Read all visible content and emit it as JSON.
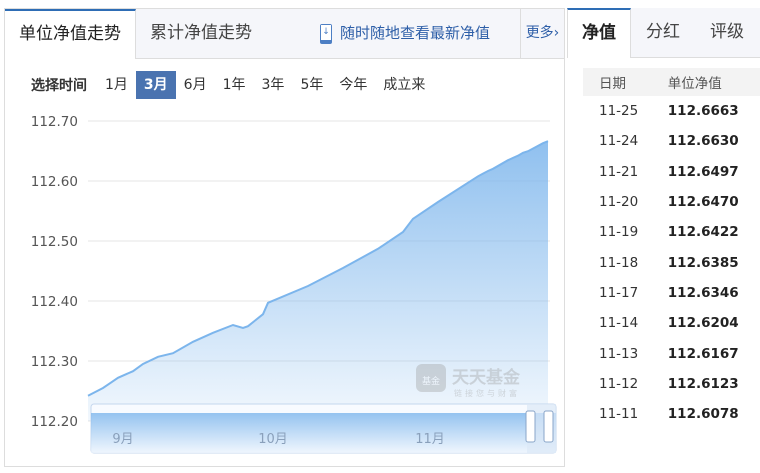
{
  "tabs": {
    "unit_nav": "单位净值走势",
    "acc_nav": "累计净值走势",
    "app_promo": "随时随地查看最新净值",
    "more": "更多›"
  },
  "range": {
    "label": "选择时间",
    "options": [
      "1月",
      "3月",
      "6月",
      "1年",
      "3年",
      "5年",
      "今年",
      "成立来"
    ],
    "selected": "3月"
  },
  "right_tabs": [
    "净值",
    "分红",
    "评级"
  ],
  "table": {
    "headers": [
      "日期",
      "单位净值"
    ],
    "rows": [
      [
        "11-25",
        "112.6663"
      ],
      [
        "11-24",
        "112.6630"
      ],
      [
        "11-21",
        "112.6497"
      ],
      [
        "11-20",
        "112.6470"
      ],
      [
        "11-19",
        "112.6422"
      ],
      [
        "11-18",
        "112.6385"
      ],
      [
        "11-17",
        "112.6346"
      ],
      [
        "11-14",
        "112.6204"
      ],
      [
        "11-13",
        "112.6167"
      ],
      [
        "11-12",
        "112.6123"
      ],
      [
        "11-11",
        "112.6078"
      ]
    ]
  },
  "watermark": {
    "logo": "基金",
    "name": "天天基金",
    "slogan": "链接您与财富"
  },
  "colors": {
    "accent": "#2e6db5",
    "line": "#7cb5ec",
    "selected": "#4a73b0"
  },
  "chart_data": {
    "type": "area",
    "ylim": [
      112.2,
      112.7
    ],
    "yticks": [
      "112.70",
      "112.60",
      "112.50",
      "112.40",
      "112.30",
      "112.20"
    ],
    "navigator_labels": [
      "9月",
      "10月",
      "11月"
    ],
    "grid": true,
    "x": [
      "08-25",
      "08-28",
      "08-31",
      "09-03",
      "09-05",
      "09-08",
      "09-11",
      "09-15",
      "09-19",
      "09-23",
      "09-25",
      "09-26",
      "09-29",
      "09-30",
      "10-08",
      "10-15",
      "10-22",
      "10-27",
      "10-29",
      "11-03",
      "11-11",
      "11-12",
      "11-13",
      "11-14",
      "11-17",
      "11-18",
      "11-19",
      "11-20",
      "11-21",
      "11-24",
      "11-25"
    ],
    "values": [
      112.242,
      112.255,
      112.272,
      112.283,
      112.295,
      112.307,
      112.313,
      112.332,
      112.347,
      112.36,
      112.355,
      112.358,
      112.378,
      112.397,
      112.425,
      112.455,
      112.487,
      112.515,
      112.537,
      112.565,
      112.6078,
      112.6123,
      112.6167,
      112.6204,
      112.6346,
      112.6385,
      112.6422,
      112.647,
      112.6497,
      112.663,
      112.6663
    ]
  }
}
